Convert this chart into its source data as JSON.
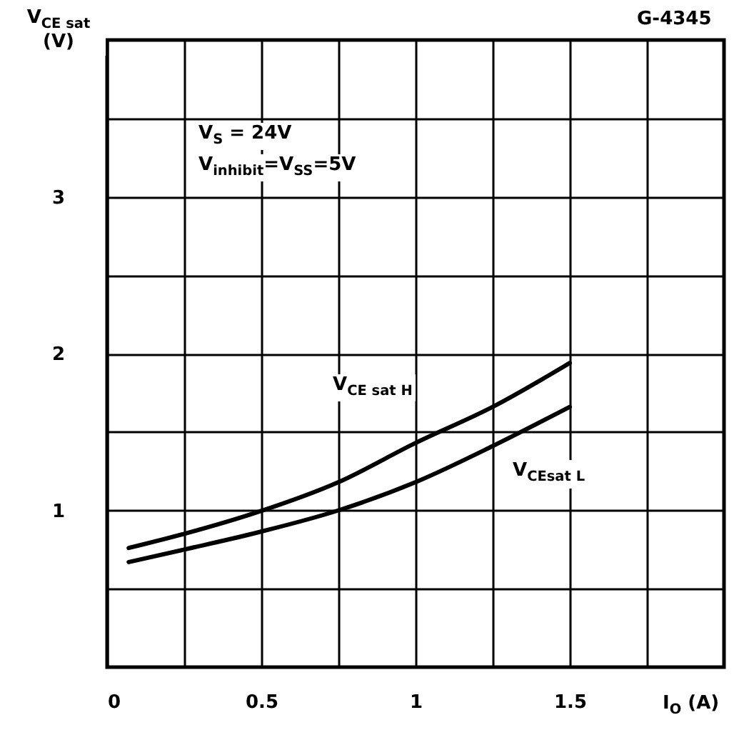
{
  "chart_data": {
    "type": "line",
    "xlabel": "I$_{O}$ (A)",
    "ylabel": "V$_{CE sat}$ (V)",
    "annotations": [
      "G-4345",
      "V$_{S}$ = 24V",
      "V$_{inhibit}$=V$_{SS}$=5V"
    ],
    "x": [
      0.07,
      0.25,
      0.49,
      0.75,
      1.0,
      1.25,
      1.5
    ],
    "series": [
      {
        "name": "V$_{CE sat H}$",
        "color": "#000000",
        "values": [
          0.76,
          0.85,
          0.99,
          1.18,
          1.43,
          1.66,
          1.94
        ]
      },
      {
        "name": "V$_{CEsat L}$",
        "color": "#000000",
        "values": [
          0.67,
          0.75,
          0.86,
          1.0,
          1.18,
          1.41,
          1.66
        ]
      }
    ],
    "xlim": [
      0,
      2
    ],
    "ylim": [
      0,
      4
    ],
    "xticks": [
      0,
      {
        "value": 0.25,
        "label": null
      },
      0.5,
      {
        "value": 0.75,
        "label": null
      },
      1,
      {
        "value": 1.25,
        "label": null
      },
      1.5,
      {
        "value": 1.75,
        "label": null
      }
    ],
    "yticks": [
      {
        "value": 0.5,
        "label": null
      },
      1,
      {
        "value": 1.5,
        "label": null
      },
      2,
      {
        "value": 2.5,
        "label": null
      },
      3,
      {
        "value": 3.5,
        "label": null
      }
    ],
    "grid": true,
    "marker": "none",
    "line_style": "solid"
  }
}
